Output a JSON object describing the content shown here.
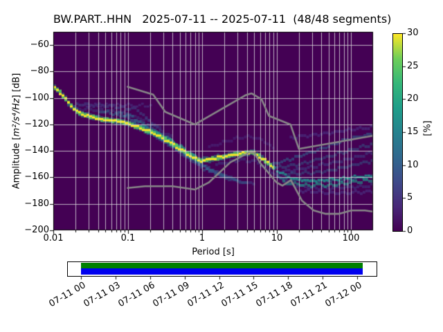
{
  "title": "BW.PART..HHN   2025-07-11 -- 2025-07-11  (48/48 segments)",
  "ylabel": {
    "prefix": "Amplitude [",
    "math": "m²/s⁴/Hz",
    "suffix": "] [dB]"
  },
  "chart_data": {
    "type": "heatmap",
    "subtype": "ppsd-probability-density",
    "station": "BW.PART..HHN",
    "date_range": "2025-07-11 -- 2025-07-11",
    "segments": "48/48",
    "xlabel": "Period [s]",
    "ylabel": "Amplitude [m²/s⁴/Hz] [dB]",
    "xscale": "log",
    "xlim": [
      0.01,
      200
    ],
    "ylim": [
      -200,
      -50
    ],
    "grid": true,
    "xticks": {
      "values": [
        0.01,
        0.1,
        1,
        10,
        100
      ],
      "labels": [
        "0.01",
        "0.1",
        "1",
        "10",
        "100"
      ]
    },
    "yticks": {
      "values": [
        -60,
        -80,
        -100,
        -120,
        -140,
        -160,
        -180,
        -200
      ],
      "labels": [
        "−60",
        "−80",
        "−100",
        "−120",
        "−140",
        "−160",
        "−180",
        "−200"
      ]
    },
    "colorbar": {
      "label": "[%]",
      "min": 0,
      "max": 30,
      "tick_values": [
        0,
        5,
        10,
        15,
        20,
        25,
        30
      ],
      "tick_labels": [
        "0",
        "5",
        "10",
        "15",
        "20",
        "25",
        "30"
      ],
      "colormap": "viridis",
      "stops": [
        "#440154",
        "#482878",
        "#3e4a89",
        "#31688e",
        "#26828e",
        "#1f9e89",
        "#35b779",
        "#6ece58",
        "#fde725"
      ]
    },
    "background_color": "#440154",
    "grid_color": "#dedede",
    "noise_models": {
      "color": "#888888",
      "nhnm": [
        [
          0.1,
          -91.5
        ],
        [
          0.22,
          -97.4
        ],
        [
          0.32,
          -110.5
        ],
        [
          0.8,
          -120
        ],
        [
          3.8,
          -98
        ],
        [
          4.6,
          -96.5
        ],
        [
          6.3,
          -101
        ],
        [
          7.9,
          -113.5
        ],
        [
          15.4,
          -120
        ],
        [
          20,
          -138.5
        ],
        [
          200,
          -128.5
        ]
      ],
      "nlnm": [
        [
          0.1,
          -168
        ],
        [
          0.17,
          -166.7
        ],
        [
          0.4,
          -166.7
        ],
        [
          0.8,
          -169.2
        ],
        [
          1.24,
          -163.7
        ],
        [
          2.4,
          -148.6
        ],
        [
          4.3,
          -141.1
        ],
        [
          5,
          -141.1
        ],
        [
          6,
          -149
        ],
        [
          10,
          -163.8
        ],
        [
          12,
          -166.2
        ],
        [
          15.6,
          -162.1
        ],
        [
          21.9,
          -177.5
        ],
        [
          31.6,
          -185
        ],
        [
          45,
          -187.5
        ],
        [
          70,
          -187.5
        ],
        [
          101,
          -185
        ],
        [
          154,
          -185
        ],
        [
          200,
          -185.9
        ]
      ]
    },
    "mode_ridge": {
      "yellow_color": "#fde725",
      "points": [
        [
          0.01,
          -92
        ],
        [
          0.0115,
          -95
        ],
        [
          0.013,
          -98.5
        ],
        [
          0.015,
          -103
        ],
        [
          0.0175,
          -107
        ],
        [
          0.02,
          -110.5
        ],
        [
          0.024,
          -112.5
        ],
        [
          0.03,
          -114
        ],
        [
          0.04,
          -115.8
        ],
        [
          0.055,
          -117
        ],
        [
          0.075,
          -117.8
        ],
        [
          0.1,
          -119.5
        ],
        [
          0.14,
          -122.5
        ],
        [
          0.2,
          -126
        ],
        [
          0.28,
          -130
        ],
        [
          0.4,
          -135.5
        ],
        [
          0.55,
          -140.5
        ],
        [
          0.72,
          -145
        ],
        [
          0.9,
          -147.5
        ],
        [
          1.1,
          -147
        ],
        [
          1.6,
          -145
        ],
        [
          2.4,
          -143
        ],
        [
          3.5,
          -141.7
        ],
        [
          4.5,
          -141
        ],
        [
          5.5,
          -143.5
        ],
        [
          7,
          -148
        ],
        [
          9,
          -153
        ]
      ],
      "extension_color": "#21918c",
      "extension": [
        [
          9,
          -153
        ],
        [
          11,
          -156.5
        ],
        [
          14,
          -159.5
        ],
        [
          18,
          -161.5
        ],
        [
          25,
          -162.5
        ],
        [
          35,
          -162.5
        ],
        [
          50,
          -161.5
        ],
        [
          80,
          -160.5
        ],
        [
          120,
          -159.5
        ],
        [
          200,
          -158.5
        ]
      ]
    },
    "streaks": [
      {
        "c": "#3e4a89",
        "a": 0.55,
        "h": 4,
        "p": [
          [
            0.02,
            -105
          ],
          [
            0.06,
            -106
          ],
          [
            0.13,
            -109
          ],
          [
            0.3,
            -128
          ],
          [
            0.7,
            -146
          ],
          [
            1.3,
            -156
          ]
        ]
      },
      {
        "c": "#482878",
        "a": 0.8,
        "h": 3,
        "p": [
          [
            0.025,
            -105.5
          ],
          [
            0.2,
            -105.5
          ]
        ]
      },
      {
        "c": "#3e4a89",
        "a": 0.4,
        "h": 4,
        "p": [
          [
            0.02,
            -108
          ],
          [
            0.08,
            -111
          ],
          [
            0.2,
            -118
          ],
          [
            0.4,
            -131
          ]
        ]
      },
      {
        "c": "#31688e",
        "a": 0.6,
        "h": 4,
        "p": [
          [
            0.04,
            -110
          ],
          [
            0.1,
            -113
          ],
          [
            0.25,
            -127
          ],
          [
            0.6,
            -143
          ],
          [
            1.2,
            -154
          ],
          [
            2,
            -160
          ]
        ]
      },
      {
        "c": "#31688e",
        "a": 0.5,
        "h": 4,
        "p": [
          [
            0.07,
            -112
          ],
          [
            0.2,
            -122
          ],
          [
            0.5,
            -140
          ],
          [
            1,
            -151
          ],
          [
            1.8,
            -158
          ],
          [
            3,
            -162
          ]
        ]
      },
      {
        "c": "#3e4a89",
        "a": 0.5,
        "h": 4,
        "p": [
          [
            0.1,
            -116
          ],
          [
            0.3,
            -133
          ],
          [
            0.8,
            -149
          ],
          [
            1.6,
            -158
          ],
          [
            3,
            -163
          ],
          [
            5,
            -165
          ]
        ]
      },
      {
        "c": "#31688e",
        "a": 0.45,
        "h": 4,
        "p": [
          [
            0.12,
            -119
          ],
          [
            0.4,
            -138
          ],
          [
            1,
            -153
          ],
          [
            2.2,
            -161
          ],
          [
            4,
            -165
          ]
        ]
      },
      {
        "c": "#26828e",
        "a": 0.8,
        "h": 3,
        "p": [
          [
            0.15,
            -121
          ],
          [
            0.3,
            -129
          ],
          [
            0.5,
            -137
          ],
          [
            0.8,
            -144.5
          ]
        ]
      },
      {
        "c": "#26828e",
        "a": 0.5,
        "h": 6,
        "p": [
          [
            0.15,
            -124
          ],
          [
            0.25,
            -129
          ],
          [
            0.4,
            -136
          ]
        ]
      },
      {
        "c": "#35b779",
        "a": 0.7,
        "h": 3,
        "p": [
          [
            0.2,
            -125
          ],
          [
            0.35,
            -132
          ],
          [
            0.6,
            -140
          ],
          [
            0.85,
            -146
          ]
        ]
      },
      {
        "c": "#482878",
        "a": 0.6,
        "h": 4,
        "p": [
          [
            1.2,
            -137
          ],
          [
            2.5,
            -131
          ],
          [
            4.5,
            -129
          ],
          [
            7,
            -133
          ],
          [
            9,
            -140
          ]
        ]
      },
      {
        "c": "#3e4a89",
        "a": 0.45,
        "h": 4,
        "p": [
          [
            1.5,
            -150
          ],
          [
            3,
            -147
          ],
          [
            5,
            -148
          ],
          [
            8,
            -155
          ],
          [
            12,
            -162
          ],
          [
            18,
            -166
          ],
          [
            30,
            -168
          ],
          [
            60,
            -168
          ],
          [
            120,
            -167
          ],
          [
            200,
            -166
          ]
        ]
      },
      {
        "c": "#31688e",
        "a": 0.55,
        "h": 4,
        "p": [
          [
            8,
            -151
          ],
          [
            15,
            -146
          ],
          [
            35,
            -139
          ],
          [
            80,
            -132
          ],
          [
            160,
            -128
          ],
          [
            200,
            -127
          ]
        ]
      },
      {
        "c": "#31688e",
        "a": 0.45,
        "h": 4,
        "p": [
          [
            9,
            -153
          ],
          [
            20,
            -150
          ],
          [
            50,
            -144
          ],
          [
            120,
            -138
          ],
          [
            200,
            -134
          ]
        ]
      },
      {
        "c": "#3e4a89",
        "a": 0.5,
        "h": 4,
        "p": [
          [
            10,
            -156
          ],
          [
            30,
            -152
          ],
          [
            80,
            -147
          ],
          [
            200,
            -141
          ]
        ]
      },
      {
        "c": "#31688e",
        "a": 0.45,
        "h": 4,
        "p": [
          [
            10,
            -158
          ],
          [
            40,
            -156
          ],
          [
            100,
            -151
          ],
          [
            200,
            -147
          ]
        ]
      },
      {
        "c": "#26828e",
        "a": 0.7,
        "h": 3,
        "p": [
          [
            10,
            -160
          ],
          [
            20,
            -162
          ],
          [
            40,
            -163
          ],
          [
            80,
            -162
          ],
          [
            150,
            -160
          ],
          [
            200,
            -159
          ]
        ]
      },
      {
        "c": "#1f9e89",
        "a": 0.6,
        "h": 4,
        "p": [
          [
            12,
            -164
          ],
          [
            25,
            -166
          ],
          [
            50,
            -166
          ],
          [
            100,
            -164
          ],
          [
            200,
            -162
          ]
        ]
      },
      {
        "c": "#482878",
        "a": 0.8,
        "h": 4,
        "p": [
          [
            15,
            -130
          ],
          [
            40,
            -127
          ],
          [
            100,
            -124
          ],
          [
            200,
            -122
          ]
        ]
      },
      {
        "c": "#482878",
        "a": 0.8,
        "h": 4,
        "p": [
          [
            20,
            -170
          ],
          [
            60,
            -172
          ],
          [
            150,
            -171
          ],
          [
            200,
            -170
          ]
        ]
      }
    ],
    "timeline": {
      "tick_labels": [
        "07-11 00",
        "07-11 03",
        "07-11 06",
        "07-11 09",
        "07-11 12",
        "07-11 15",
        "07-11 18",
        "07-11 21",
        "07-12 00"
      ],
      "coverage_color": "#008000",
      "data_color": "#0000ee",
      "frame_color": "#000000"
    }
  }
}
